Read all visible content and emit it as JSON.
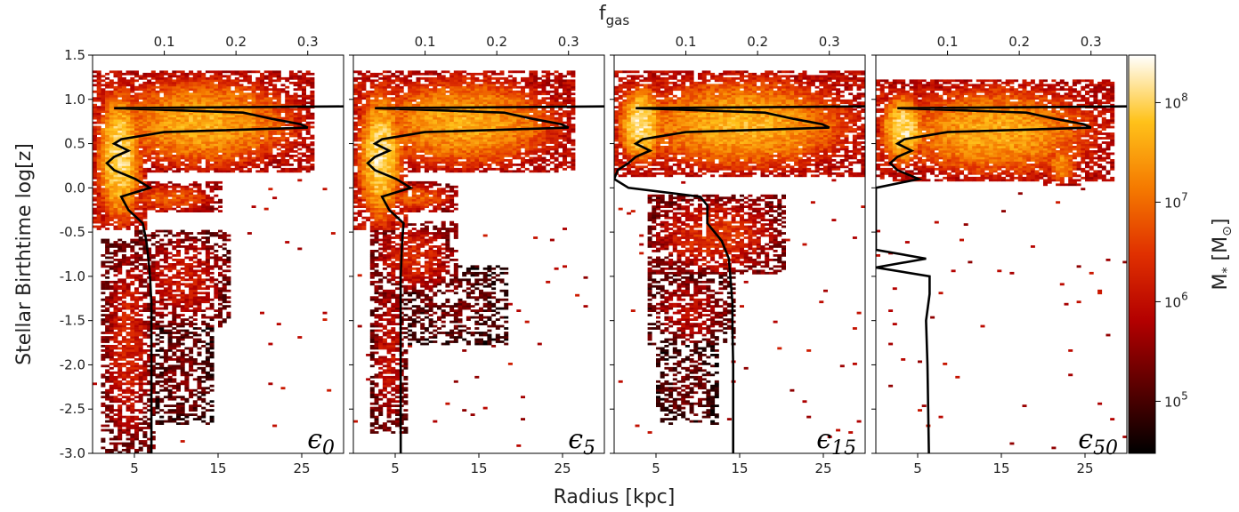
{
  "chart_data": {
    "type": "heatmap",
    "top_axis_label": "f",
    "top_axis_label_sub": "gas",
    "xlabel": "Radius [kpc]",
    "ylabel": "Stellar Birthtime log[z]",
    "colorbar_label": "M",
    "colorbar_label_sub": "*",
    "colorbar_label_unit_open": " [M",
    "colorbar_label_unit_sub": "⊙",
    "colorbar_label_unit_close": "]",
    "colorbar_scale": "log",
    "colorbar_range": [
      30000,
      300000000
    ],
    "colorbar_ticks": [
      {
        "base": "10",
        "exp": "5",
        "value": 100000
      },
      {
        "base": "10",
        "exp": "6",
        "value": 1000000
      },
      {
        "base": "10",
        "exp": "7",
        "value": 10000000
      },
      {
        "base": "10",
        "exp": "8",
        "value": 100000000
      }
    ],
    "colormap": [
      "#000000",
      "#5a0000",
      "#b30000",
      "#e03000",
      "#f57a00",
      "#ffc21a",
      "#ffffff"
    ],
    "xlim": [
      0,
      30
    ],
    "ylim": [
      -3.0,
      1.5
    ],
    "top_xlim": [
      0.0,
      0.35
    ],
    "x_ticks": [
      "5",
      "15",
      "25"
    ],
    "x_tick_values": [
      5,
      15,
      25
    ],
    "y_ticks": [
      "-3.0",
      "-2.5",
      "-2.0",
      "-1.5",
      "-1.0",
      "-0.5",
      "0.0",
      "0.5",
      "1.0",
      "1.5"
    ],
    "y_tick_values": [
      -3.0,
      -2.5,
      -2.0,
      -1.5,
      -1.0,
      -0.5,
      0.0,
      0.5,
      1.0,
      1.5
    ],
    "top_ticks": [
      "0.1",
      "0.2",
      "0.3"
    ],
    "top_tick_values": [
      0.1,
      0.2,
      0.3
    ],
    "panels": [
      {
        "label_main": "ϵ",
        "label_sub": "0",
        "density_regions": [
          {
            "r": [
              0,
              26
            ],
            "z": [
              0.15,
              1.3
            ],
            "level": 0.78
          },
          {
            "r": [
              0,
              6
            ],
            "z": [
              -0.5,
              1.2
            ],
            "level": 0.92
          },
          {
            "r": [
              3,
              15
            ],
            "z": [
              -0.3,
              0.05
            ],
            "level": 0.6
          },
          {
            "r": [
              5,
              16
            ],
            "z": [
              -1.6,
              -0.5
            ],
            "level": 0.42
          },
          {
            "r": [
              1,
              7
            ],
            "z": [
              -3.0,
              -0.6
            ],
            "level": 0.45
          },
          {
            "r": [
              7,
              14
            ],
            "z": [
              -2.7,
              -1.5
            ],
            "level": 0.22
          }
        ],
        "gas_fraction_curve": {
          "z": [
            0.92,
            0.9,
            0.85,
            0.78,
            0.72,
            0.68,
            0.63,
            0.55,
            0.5,
            0.42,
            0.35,
            0.28,
            0.2,
            0.1,
            0.0,
            -0.1,
            -0.25,
            -0.4,
            -0.6,
            -0.8,
            -1.0,
            -1.3,
            -1.6,
            -2.0,
            -2.5,
            -3.0
          ],
          "fgas": [
            0.35,
            0.03,
            0.21,
            0.25,
            0.29,
            0.3,
            0.1,
            0.04,
            0.03,
            0.05,
            0.03,
            0.02,
            0.03,
            0.06,
            0.08,
            0.04,
            0.05,
            0.07,
            0.075,
            0.078,
            0.08,
            0.082,
            0.082,
            0.082,
            0.082,
            0.082
          ]
        }
      },
      {
        "label_main": "ϵ",
        "label_sub": "5",
        "density_regions": [
          {
            "r": [
              0,
              26
            ],
            "z": [
              0.15,
              1.3
            ],
            "level": 0.78
          },
          {
            "r": [
              0,
              6
            ],
            "z": [
              -0.5,
              1.2
            ],
            "level": 0.92
          },
          {
            "r": [
              3,
              12
            ],
            "z": [
              -0.3,
              0.05
            ],
            "level": 0.6
          },
          {
            "r": [
              2,
              12
            ],
            "z": [
              -1.2,
              -0.4
            ],
            "level": 0.48
          },
          {
            "r": [
              2,
              6
            ],
            "z": [
              -2.8,
              -1.0
            ],
            "level": 0.4
          },
          {
            "r": [
              5,
              18
            ],
            "z": [
              -1.8,
              -0.9
            ],
            "level": 0.2
          }
        ],
        "gas_fraction_curve": {
          "z": [
            0.92,
            0.9,
            0.85,
            0.78,
            0.72,
            0.68,
            0.63,
            0.55,
            0.5,
            0.42,
            0.35,
            0.28,
            0.2,
            0.1,
            0.0,
            -0.1,
            -0.25,
            -0.4,
            -0.6,
            -0.8,
            -1.0,
            -1.5,
            -2.0,
            -2.5,
            -3.0
          ],
          "fgas": [
            0.35,
            0.03,
            0.21,
            0.25,
            0.29,
            0.3,
            0.1,
            0.04,
            0.03,
            0.05,
            0.03,
            0.02,
            0.03,
            0.06,
            0.08,
            0.04,
            0.05,
            0.07,
            0.068,
            0.067,
            0.066,
            0.066,
            0.066,
            0.066,
            0.066
          ]
        }
      },
      {
        "label_main": "ϵ",
        "label_sub": "15",
        "density_regions": [
          {
            "r": [
              0,
              30
            ],
            "z": [
              0.12,
              1.3
            ],
            "level": 0.8
          },
          {
            "r": [
              0,
              6
            ],
            "z": [
              0.2,
              1.2
            ],
            "level": 0.93
          },
          {
            "r": [
              4,
              20
            ],
            "z": [
              -1.0,
              -0.1
            ],
            "level": 0.5
          },
          {
            "r": [
              4,
              14
            ],
            "z": [
              -1.8,
              -1.0
            ],
            "level": 0.35
          },
          {
            "r": [
              5,
              12
            ],
            "z": [
              -2.7,
              -1.8
            ],
            "level": 0.2
          }
        ],
        "gas_fraction_curve": {
          "z": [
            0.92,
            0.9,
            0.85,
            0.78,
            0.72,
            0.68,
            0.63,
            0.55,
            0.5,
            0.42,
            0.35,
            0.28,
            0.2,
            0.1,
            0.0,
            -0.1,
            -0.2,
            -0.4,
            -0.6,
            -0.8,
            -1.0,
            -1.3,
            -1.6,
            -2.0,
            -2.5,
            -3.0
          ],
          "fgas": [
            0.35,
            0.03,
            0.21,
            0.25,
            0.29,
            0.3,
            0.1,
            0.04,
            0.03,
            0.05,
            0.03,
            0.02,
            0.005,
            0.0,
            0.02,
            0.12,
            0.13,
            0.13,
            0.15,
            0.16,
            0.162,
            0.165,
            0.165,
            0.166,
            0.166,
            0.166
          ]
        }
      },
      {
        "label_main": "ϵ",
        "label_sub": "50",
        "density_regions": [
          {
            "r": [
              0,
              28
            ],
            "z": [
              0.05,
              1.2
            ],
            "level": 0.78
          },
          {
            "r": [
              0,
              6
            ],
            "z": [
              0.2,
              1.1
            ],
            "level": 0.92
          },
          {
            "r": [
              20,
              24
            ],
            "z": [
              0.0,
              0.5
            ],
            "level": 0.72
          }
        ],
        "gas_fraction_curve": {
          "z": [
            0.92,
            0.9,
            0.85,
            0.78,
            0.72,
            0.68,
            0.63,
            0.55,
            0.5,
            0.42,
            0.35,
            0.28,
            0.2,
            0.1,
            0.0,
            -0.3,
            -0.7,
            -0.8,
            -0.9,
            -1.0,
            -1.2,
            -1.5,
            -2.0,
            -2.5,
            -3.0
          ],
          "fgas": [
            0.35,
            0.03,
            0.21,
            0.25,
            0.29,
            0.3,
            0.1,
            0.04,
            0.03,
            0.05,
            0.03,
            0.02,
            0.03,
            0.06,
            0.0,
            0.0,
            0.0,
            0.07,
            0.0,
            0.075,
            0.075,
            0.07,
            0.072,
            0.073,
            0.074
          ]
        }
      }
    ]
  }
}
